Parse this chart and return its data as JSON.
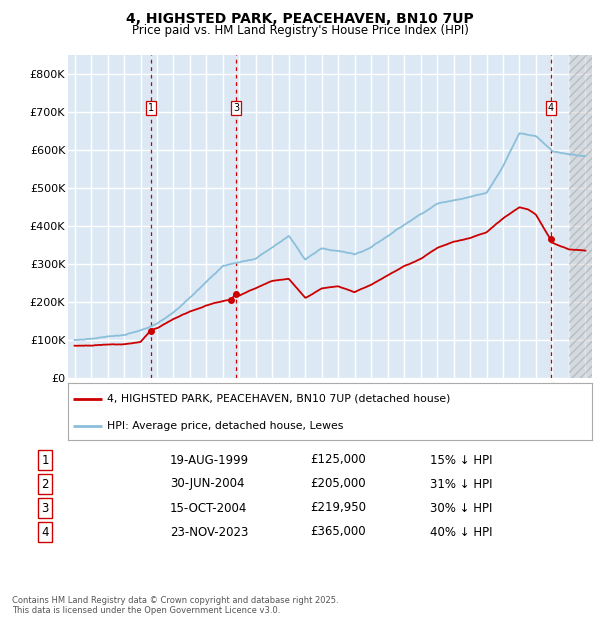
{
  "title1": "4, HIGHSTED PARK, PEACEHAVEN, BN10 7UP",
  "title2": "Price paid vs. HM Land Registry's House Price Index (HPI)",
  "ylim": [
    0,
    850000
  ],
  "yticks": [
    0,
    100000,
    200000,
    300000,
    400000,
    500000,
    600000,
    700000,
    800000
  ],
  "ytick_labels": [
    "£0",
    "£100K",
    "£200K",
    "£300K",
    "£400K",
    "£500K",
    "£600K",
    "£700K",
    "£800K"
  ],
  "xlim_start": 1994.6,
  "xlim_end": 2026.4,
  "plot_bg": "#dce9f5",
  "grid_color": "#ffffff",
  "red_line_color": "#cc0000",
  "blue_line_color": "#8bbfda",
  "dashed_line_color": "#cc0000",
  "hatch_start": 2025.0,
  "sale_markers": [
    {
      "num": 1,
      "year": 1999.63,
      "price": 125000,
      "label": "1",
      "date": "19-AUG-1999",
      "hpi_diff": "15% ↓ HPI",
      "show_vline": true
    },
    {
      "num": 2,
      "year": 2004.5,
      "price": 205000,
      "label": "2",
      "date": "30-JUN-2004",
      "hpi_diff": "31% ↓ HPI",
      "show_vline": false
    },
    {
      "num": 3,
      "year": 2004.79,
      "price": 219950,
      "label": "3",
      "date": "15-OCT-2004",
      "hpi_diff": "30% ↓ HPI",
      "show_vline": true
    },
    {
      "num": 4,
      "year": 2023.9,
      "price": 365000,
      "label": "4",
      "date": "23-NOV-2023",
      "hpi_diff": "40% ↓ HPI",
      "show_vline": true
    }
  ],
  "legend_entries": [
    "4, HIGHSTED PARK, PEACEHAVEN, BN10 7UP (detached house)",
    "HPI: Average price, detached house, Lewes"
  ],
  "footer_text": "Contains HM Land Registry data © Crown copyright and database right 2025.\nThis data is licensed under the Open Government Licence v3.0.",
  "table_rows": [
    [
      "1",
      "19-AUG-1999",
      "£125,000",
      "15% ↓ HPI"
    ],
    [
      "2",
      "30-JUN-2004",
      "£205,000",
      "31% ↓ HPI"
    ],
    [
      "3",
      "15-OCT-2004",
      "£219,950",
      "30% ↓ HPI"
    ],
    [
      "4",
      "23-NOV-2023",
      "£365,000",
      "40% ↓ HPI"
    ]
  ]
}
